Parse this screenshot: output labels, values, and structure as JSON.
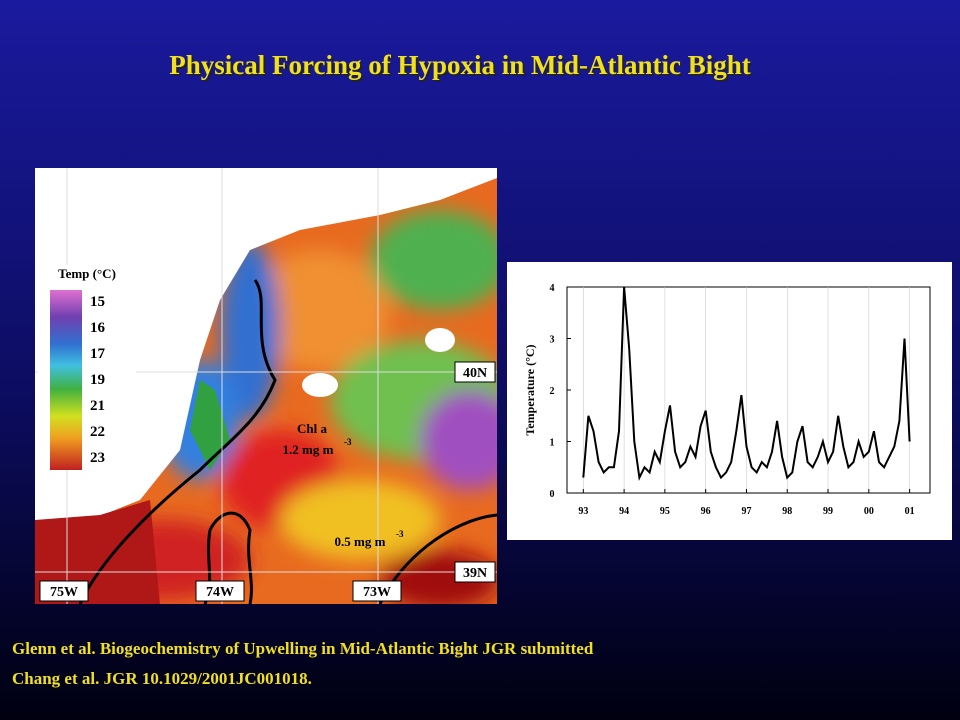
{
  "title": "Physical Forcing of Hypoxia in Mid-Atlantic Bight",
  "map": {
    "legend_title": "Temp (°C)",
    "legend_labels": [
      "15",
      "16",
      "17",
      "19",
      "21",
      "22",
      "23"
    ],
    "longitude_labels": [
      "75W",
      "74W",
      "73W"
    ],
    "latitude_labels": [
      "40N",
      "39N"
    ],
    "contour_inner": {
      "name": "Chl a",
      "value": "1.2 mg m",
      "exponent": "-3"
    },
    "contour_outer": {
      "value": "0.5 mg m",
      "exponent": "-3"
    }
  },
  "chart_data": {
    "type": "line",
    "y_label": "Temperature (°C)",
    "x": [
      93.0,
      93.125,
      93.25,
      93.375,
      93.5,
      93.625,
      93.75,
      93.875,
      94.0,
      94.125,
      94.25,
      94.375,
      94.5,
      94.625,
      94.75,
      94.875,
      95.0,
      95.125,
      95.25,
      95.375,
      95.5,
      95.625,
      95.75,
      95.875,
      96.0,
      96.125,
      96.25,
      96.375,
      96.5,
      96.625,
      96.75,
      96.875,
      97.0,
      97.125,
      97.25,
      97.375,
      97.5,
      97.625,
      97.75,
      97.875,
      98.0,
      98.125,
      98.25,
      98.375,
      98.5,
      98.625,
      98.75,
      98.875,
      99.0,
      99.125,
      99.25,
      99.375,
      99.5,
      99.625,
      99.75,
      99.875,
      100.0,
      100.125,
      100.25,
      100.375,
      100.5,
      100.625,
      100.75,
      100.875,
      101.0
    ],
    "series": [
      {
        "color": "#000000",
        "values": [
          0.3,
          1.5,
          1.2,
          0.6,
          0.4,
          0.5,
          0.5,
          1.2,
          4.0,
          2.8,
          1.0,
          0.3,
          0.5,
          0.4,
          0.8,
          0.6,
          1.2,
          1.7,
          0.8,
          0.5,
          0.6,
          0.9,
          0.7,
          1.3,
          1.6,
          0.8,
          0.5,
          0.3,
          0.4,
          0.6,
          1.2,
          1.9,
          0.9,
          0.5,
          0.4,
          0.6,
          0.5,
          0.8,
          1.4,
          0.7,
          0.3,
          0.4,
          1.0,
          1.3,
          0.6,
          0.5,
          0.7,
          1.0,
          0.6,
          0.8,
          1.5,
          0.9,
          0.5,
          0.6,
          1.0,
          0.7,
          0.8,
          1.2,
          0.6,
          0.5,
          0.7,
          0.9,
          1.4,
          3.0,
          1.0
        ]
      }
    ],
    "xlim": [
      92.6,
      101.5
    ],
    "xticks": [
      93,
      94,
      95,
      96,
      97,
      98,
      99,
      {
        "value": 100,
        "label": "00"
      },
      {
        "value": 101,
        "label": "01"
      }
    ],
    "ylim": [
      0,
      4
    ],
    "yticks": [
      0,
      1,
      2,
      3,
      4
    ]
  },
  "footer": [
    "Glenn et al. Biogeochemistry of Upwelling in Mid-Atlantic Bight JGR  submitted",
    "Chang et al. JGR 10.1029/2001JC001018."
  ]
}
